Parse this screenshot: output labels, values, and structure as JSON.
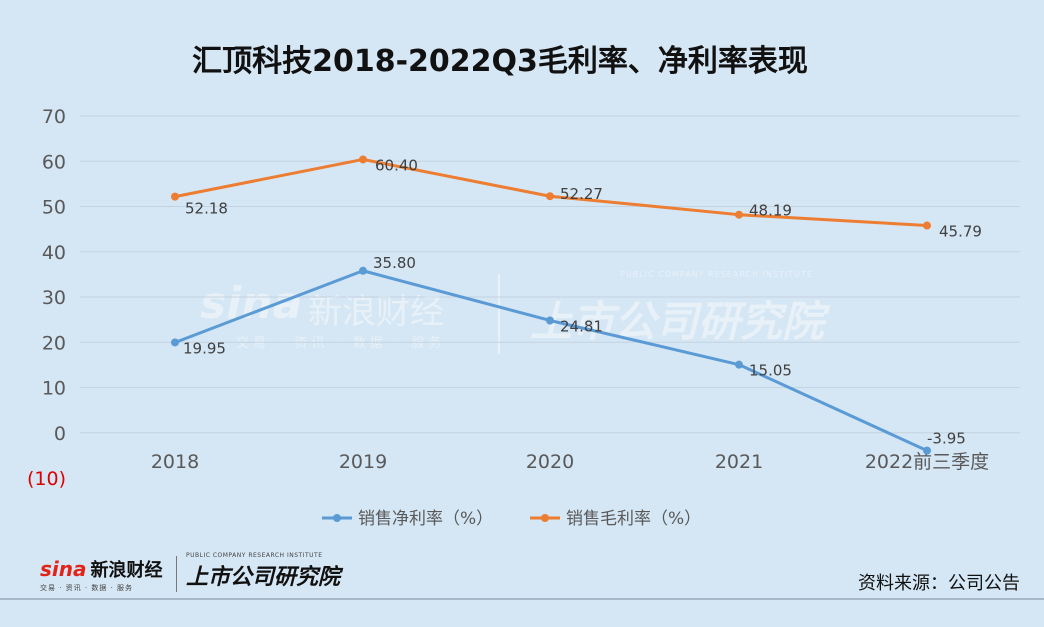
{
  "chart_data": {
    "type": "line",
    "title": "汇顶科技2018-2022Q3毛利率、净利率表现",
    "categories": [
      "2018",
      "2019",
      "2020",
      "2021",
      "2022前三季度"
    ],
    "ylim": [
      -10,
      70
    ],
    "yticks": [
      "70",
      "60",
      "50",
      "40",
      "30",
      "20",
      "10",
      "0",
      "(10)"
    ],
    "grid": true,
    "legend_position": "bottom",
    "series": [
      {
        "name": "销售净利率（%）",
        "color": "#5b9bd5",
        "values": [
          19.95,
          35.8,
          24.81,
          15.05,
          -3.95
        ],
        "labels": [
          "19.95",
          "35.80",
          "24.81",
          "15.05",
          "-3.95"
        ]
      },
      {
        "name": "销售毛利率（%）",
        "color": "#ed7d31",
        "values": [
          52.18,
          60.4,
          52.27,
          48.19,
          45.79
        ],
        "labels": [
          "52.18",
          "60.40",
          "52.27",
          "48.19",
          "45.79"
        ]
      }
    ]
  },
  "footer": {
    "source": "资料来源：公司公告",
    "sina_mark": "sina",
    "sina_name": "新浪财经",
    "sina_sub": "交易 · 资讯 · 数据 · 服务",
    "inst_en": "PUBLIC COMPANY RESEARCH INSTITUTE",
    "inst_cn": "上市公司研究院"
  },
  "watermark": {
    "sina_mark": "sina",
    "sina_name": "新浪财经",
    "sina_sub": "交易 · 资讯 · 数据 · 服务",
    "inst_en": "PUBLIC COMPANY RESEARCH INSTITUTE",
    "inst_cn": "上市公司研究院"
  }
}
